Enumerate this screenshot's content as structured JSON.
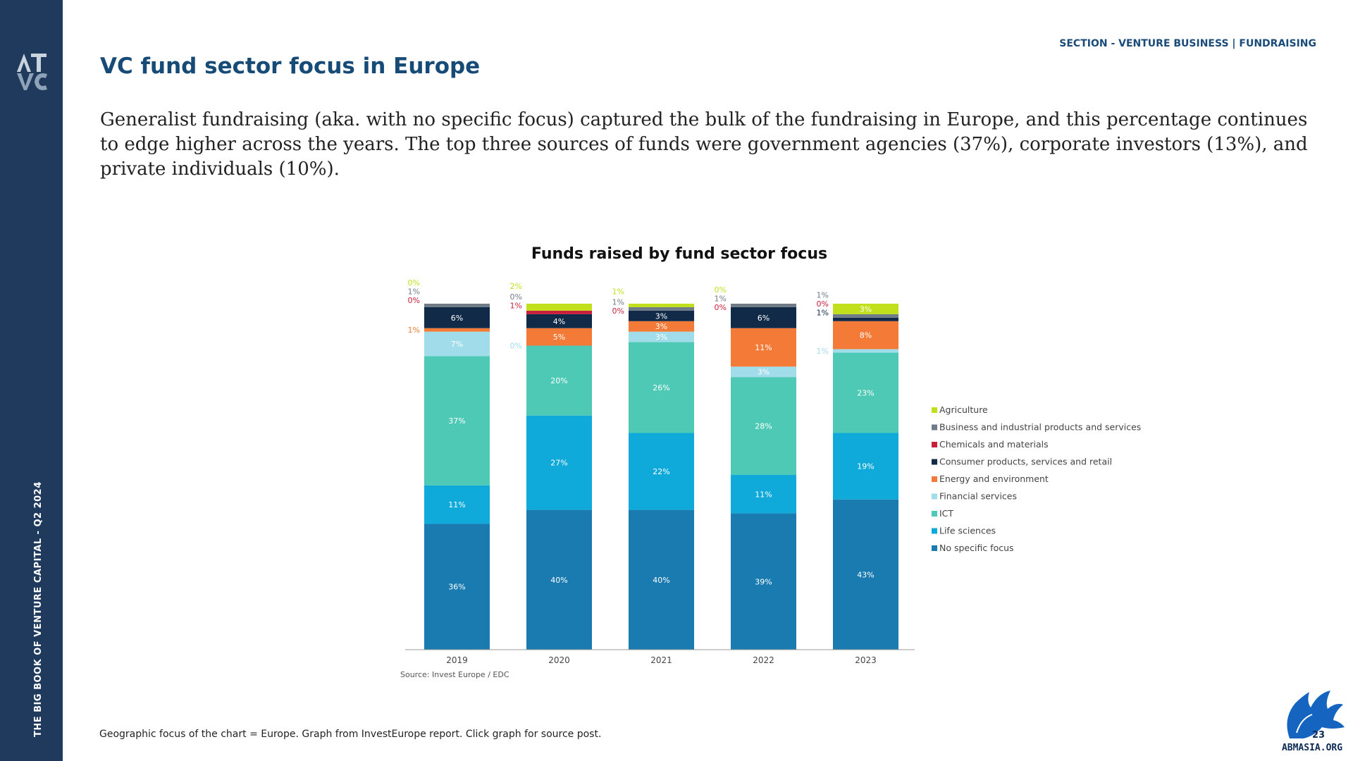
{
  "sidebar": {
    "logo_text": "ATVC",
    "vertical_text": "THE BIG BOOK OF VENTURE CAPITAL - Q2 2024"
  },
  "header": {
    "section": "SECTION - VENTURE BUSINESS | FUNDRAISING",
    "title": "VC fund sector focus in Europe"
  },
  "body_text": "Generalist fundraising (aka. with no specific focus) captured the bulk of the fundraising in Europe, and this percentage continues to edge higher across the years. The top three sources of funds were government agencies (37%), corporate investors (13%), and private individuals (10%).",
  "chart_data": {
    "type": "bar",
    "stacked": true,
    "title": "Funds raised by fund sector focus",
    "categories": [
      "2019",
      "2020",
      "2021",
      "2022",
      "2023"
    ],
    "series": [
      {
        "name": "No specific focus",
        "color": "#1a7bb0",
        "values": [
          36,
          40,
          40,
          39,
          43
        ],
        "labels": [
          "36%",
          "40%",
          "40%",
          "39%",
          "43%"
        ]
      },
      {
        "name": "Life sciences",
        "color": "#0faad9",
        "values": [
          11,
          27,
          22,
          11,
          19
        ],
        "labels": [
          "11%",
          "27%",
          "22%",
          "11%",
          "19%"
        ]
      },
      {
        "name": "ICT",
        "color": "#4ec9b5",
        "values": [
          37,
          20,
          26,
          28,
          23
        ],
        "labels": [
          "37%",
          "20%",
          "26%",
          "28%",
          "23%"
        ]
      },
      {
        "name": "Financial services",
        "color": "#a0dcea",
        "values": [
          7,
          0,
          3,
          3,
          1
        ],
        "labels": [
          "7%",
          "0%",
          "3%",
          "3%",
          "1%"
        ]
      },
      {
        "name": "Energy and environment",
        "color": "#f37b37",
        "values": [
          1,
          5,
          3,
          11,
          8
        ],
        "labels": [
          "1%",
          "5%",
          "3%",
          "11%",
          "8%"
        ]
      },
      {
        "name": "Consumer products, services and retail",
        "color": "#102a47",
        "values": [
          6,
          4,
          3,
          6,
          1
        ],
        "labels": [
          "6%",
          "4%",
          "3%",
          "6%",
          "1%"
        ]
      },
      {
        "name": "Chemicals and materials",
        "color": "#c8203c",
        "values": [
          0,
          1,
          0,
          0,
          0
        ],
        "labels": [
          "0%",
          "1%",
          "0%",
          "0%",
          "0%"
        ]
      },
      {
        "name": "Business and industrial products and services",
        "color": "#6f7b86",
        "values": [
          1,
          0,
          1,
          1,
          1
        ],
        "labels": [
          "1%",
          "0%",
          "1%",
          "1%",
          "1%"
        ]
      },
      {
        "name": "Agriculture",
        "color": "#c2df1c",
        "values": [
          0,
          2,
          1,
          0,
          3
        ],
        "labels": [
          "0%",
          "2%",
          "1%",
          "0%",
          "3%"
        ]
      }
    ],
    "legend_position": "right",
    "source": "Source: Invest Europe / EDC",
    "grid": false
  },
  "footer": "Geographic focus of the chart = Europe. Graph from InvestEurope report. Click graph for source post.",
  "brand": {
    "logo_text": "ABMASIA.ORG",
    "logo_number": "23"
  }
}
